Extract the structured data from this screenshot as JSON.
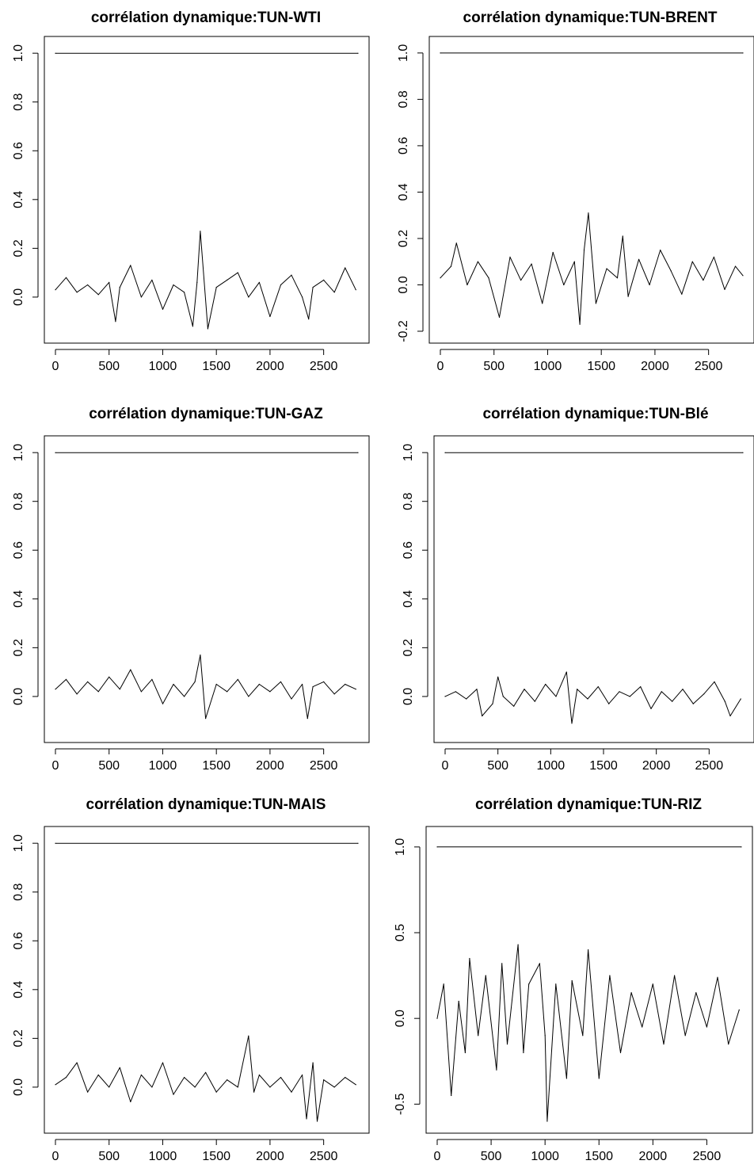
{
  "chart_data": [
    {
      "type": "line",
      "title": "corrélation dynamique:TUN-WTI",
      "xlabel": "",
      "ylabel": "",
      "xlim": [
        0,
        2820
      ],
      "ylim": [
        -0.14,
        1.02
      ],
      "x_ticks": [
        "0",
        "500",
        "1000",
        "1500",
        "2000",
        "2500"
      ],
      "y_ticks": [
        "0.0",
        "0.2",
        "0.4",
        "0.6",
        "0.8",
        "1.0"
      ],
      "grid": false,
      "series": [
        {
          "x": [
            0,
            2820
          ],
          "values": [
            1.0,
            1.0
          ]
        },
        {
          "x": [
            0,
            100,
            200,
            300,
            400,
            500,
            560,
            600,
            700,
            800,
            900,
            1000,
            1100,
            1200,
            1280,
            1320,
            1350,
            1420,
            1500,
            1600,
            1700,
            1800,
            1900,
            2000,
            2100,
            2200,
            2300,
            2360,
            2400,
            2500,
            2600,
            2700,
            2800
          ],
          "values": [
            0.03,
            0.08,
            0.02,
            0.05,
            0.01,
            0.06,
            -0.1,
            0.04,
            0.13,
            0.0,
            0.07,
            -0.05,
            0.05,
            0.02,
            -0.12,
            0.06,
            0.27,
            -0.13,
            0.04,
            0.07,
            0.1,
            0.0,
            0.06,
            -0.08,
            0.05,
            0.09,
            0.0,
            -0.09,
            0.04,
            0.07,
            0.02,
            0.12,
            0.03
          ]
        }
      ]
    },
    {
      "type": "line",
      "title": "corrélation dynamique:TUN-BRENT",
      "xlabel": "",
      "ylabel": "",
      "xlim": [
        0,
        2820
      ],
      "ylim": [
        -0.2,
        1.02
      ],
      "x_ticks": [
        "0",
        "500",
        "1000",
        "1500",
        "2000",
        "2500"
      ],
      "y_ticks": [
        "-0.2",
        "0.0",
        "0.2",
        "0.4",
        "0.6",
        "0.8",
        "1.0"
      ],
      "grid": false,
      "series": [
        {
          "x": [
            0,
            2820
          ],
          "values": [
            1.0,
            1.0
          ]
        },
        {
          "x": [
            0,
            100,
            150,
            250,
            350,
            450,
            550,
            650,
            750,
            850,
            950,
            1050,
            1150,
            1250,
            1300,
            1340,
            1380,
            1450,
            1550,
            1650,
            1700,
            1750,
            1850,
            1950,
            2050,
            2150,
            2250,
            2350,
            2450,
            2550,
            2650,
            2750,
            2820
          ],
          "values": [
            0.03,
            0.08,
            0.18,
            0.0,
            0.1,
            0.03,
            -0.14,
            0.12,
            0.02,
            0.09,
            -0.08,
            0.14,
            0.0,
            0.1,
            -0.17,
            0.15,
            0.31,
            -0.08,
            0.07,
            0.03,
            0.21,
            -0.05,
            0.11,
            0.0,
            0.15,
            0.06,
            -0.04,
            0.1,
            0.02,
            0.12,
            -0.02,
            0.08,
            0.04
          ]
        }
      ]
    },
    {
      "type": "line",
      "title": "corrélation dynamique:TUN-GAZ",
      "xlabel": "",
      "ylabel": "",
      "xlim": [
        0,
        2820
      ],
      "ylim": [
        -0.14,
        1.02
      ],
      "x_ticks": [
        "0",
        "500",
        "1000",
        "1500",
        "2000",
        "2500"
      ],
      "y_ticks": [
        "0.0",
        "0.2",
        "0.4",
        "0.6",
        "0.8",
        "1.0"
      ],
      "grid": false,
      "series": [
        {
          "x": [
            0,
            2820
          ],
          "values": [
            1.0,
            1.0
          ]
        },
        {
          "x": [
            0,
            100,
            200,
            300,
            400,
            500,
            600,
            700,
            800,
            900,
            1000,
            1100,
            1200,
            1300,
            1350,
            1400,
            1500,
            1600,
            1700,
            1800,
            1900,
            2000,
            2100,
            2200,
            2300,
            2350,
            2400,
            2500,
            2600,
            2700,
            2800
          ],
          "values": [
            0.03,
            0.07,
            0.01,
            0.06,
            0.02,
            0.08,
            0.03,
            0.11,
            0.02,
            0.07,
            -0.03,
            0.05,
            0.0,
            0.06,
            0.17,
            -0.09,
            0.05,
            0.02,
            0.07,
            0.0,
            0.05,
            0.02,
            0.06,
            -0.01,
            0.05,
            -0.09,
            0.04,
            0.06,
            0.01,
            0.05,
            0.03
          ]
        }
      ]
    },
    {
      "type": "line",
      "title": "corrélation dynamique:TUN-Blé",
      "xlabel": "",
      "ylabel": "",
      "xlim": [
        0,
        2820
      ],
      "ylim": [
        -0.14,
        1.02
      ],
      "x_ticks": [
        "0",
        "500",
        "1000",
        "1500",
        "2000",
        "2500"
      ],
      "y_ticks": [
        "0.0",
        "0.2",
        "0.4",
        "0.6",
        "0.8",
        "1.0"
      ],
      "grid": false,
      "series": [
        {
          "x": [
            0,
            2820
          ],
          "values": [
            1.0,
            1.0
          ]
        },
        {
          "x": [
            0,
            100,
            200,
            300,
            350,
            450,
            500,
            550,
            650,
            750,
            850,
            950,
            1050,
            1150,
            1200,
            1250,
            1350,
            1450,
            1550,
            1650,
            1750,
            1850,
            1950,
            2050,
            2150,
            2250,
            2350,
            2450,
            2550,
            2650,
            2700,
            2800
          ],
          "values": [
            0.0,
            0.02,
            -0.01,
            0.03,
            -0.08,
            -0.03,
            0.08,
            0.0,
            -0.04,
            0.03,
            -0.02,
            0.05,
            0.0,
            0.1,
            -0.11,
            0.03,
            -0.01,
            0.04,
            -0.03,
            0.02,
            0.0,
            0.04,
            -0.05,
            0.02,
            -0.02,
            0.03,
            -0.03,
            0.01,
            0.06,
            -0.02,
            -0.08,
            -0.01
          ]
        }
      ]
    },
    {
      "type": "line",
      "title": "corrélation dynamique:TUN-MAIS",
      "xlabel": "",
      "ylabel": "",
      "xlim": [
        0,
        2820
      ],
      "ylim": [
        -0.14,
        1.02
      ],
      "x_ticks": [
        "0",
        "500",
        "1000",
        "1500",
        "2000",
        "2500"
      ],
      "y_ticks": [
        "0.0",
        "0.2",
        "0.4",
        "0.6",
        "0.8",
        "1.0"
      ],
      "grid": false,
      "series": [
        {
          "x": [
            0,
            2820
          ],
          "values": [
            1.0,
            1.0
          ]
        },
        {
          "x": [
            0,
            100,
            200,
            300,
            400,
            500,
            600,
            700,
            800,
            900,
            1000,
            1100,
            1200,
            1300,
            1400,
            1500,
            1600,
            1700,
            1800,
            1850,
            1900,
            2000,
            2100,
            2200,
            2300,
            2340,
            2400,
            2440,
            2500,
            2600,
            2700,
            2800
          ],
          "values": [
            0.01,
            0.04,
            0.1,
            -0.02,
            0.05,
            0.0,
            0.08,
            -0.06,
            0.05,
            0.0,
            0.1,
            -0.03,
            0.04,
            0.0,
            0.06,
            -0.02,
            0.03,
            0.0,
            0.21,
            -0.02,
            0.05,
            0.0,
            0.04,
            -0.02,
            0.05,
            -0.13,
            0.1,
            -0.14,
            0.03,
            0.0,
            0.04,
            0.01
          ]
        }
      ]
    },
    {
      "type": "line",
      "title": "corrélation dynamique:TUN-RIZ",
      "xlabel": "",
      "ylabel": "",
      "xlim": [
        0,
        2820
      ],
      "ylim": [
        -0.6,
        1.05
      ],
      "x_ticks": [
        "0",
        "500",
        "1000",
        "1500",
        "2000",
        "2500"
      ],
      "y_ticks": [
        "-0.5",
        "0.0",
        "0.5",
        "1.0"
      ],
      "grid": false,
      "series": [
        {
          "x": [
            0,
            2820
          ],
          "values": [
            1.0,
            1.0
          ]
        },
        {
          "x": [
            0,
            60,
            130,
            200,
            260,
            300,
            380,
            450,
            550,
            600,
            650,
            750,
            800,
            850,
            950,
            1000,
            1020,
            1100,
            1200,
            1250,
            1350,
            1400,
            1500,
            1600,
            1700,
            1800,
            1900,
            2000,
            2100,
            2200,
            2300,
            2400,
            2500,
            2600,
            2700,
            2800
          ],
          "values": [
            0.0,
            0.2,
            -0.45,
            0.1,
            -0.2,
            0.35,
            -0.1,
            0.25,
            -0.3,
            0.32,
            -0.15,
            0.43,
            -0.2,
            0.2,
            0.32,
            -0.1,
            -0.6,
            0.2,
            -0.35,
            0.22,
            -0.1,
            0.4,
            -0.35,
            0.25,
            -0.2,
            0.15,
            -0.05,
            0.2,
            -0.15,
            0.25,
            -0.1,
            0.15,
            -0.05,
            0.24,
            -0.15,
            0.05
          ]
        }
      ]
    }
  ]
}
